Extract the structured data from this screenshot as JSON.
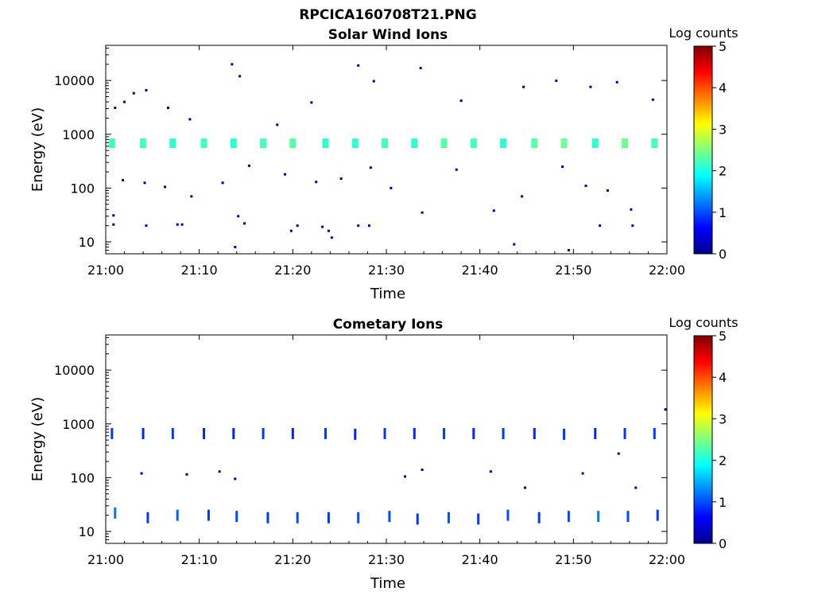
{
  "figure": {
    "title": "RPCICA160708T21.PNG"
  },
  "chart_data": [
    {
      "type": "heatmap",
      "title": "Solar Wind Ions",
      "xlabel": "Time",
      "ylabel": "Energy (eV)",
      "x_ticks": [
        "21:00",
        "21:10",
        "21:20",
        "21:30",
        "21:40",
        "21:50",
        "22:00"
      ],
      "xlim": [
        "21:00",
        "22:00"
      ],
      "y_ticks": [
        "10",
        "100",
        "1000",
        "10000"
      ],
      "y_scale": "log",
      "ylim": [
        6,
        45000
      ],
      "colorbar": {
        "label": "Log counts",
        "range": [
          0,
          5
        ],
        "ticks": [
          "0",
          "1",
          "2",
          "3",
          "4",
          "5"
        ],
        "colormap": "jet"
      },
      "cells": [
        [
          "21:00:40",
          680,
          2.2
        ],
        [
          "21:04:00",
          680,
          2.2
        ],
        [
          "21:07:10",
          680,
          2.1
        ],
        [
          "21:10:30",
          680,
          2.2
        ],
        [
          "21:13:40",
          680,
          2.1
        ],
        [
          "21:16:50",
          680,
          2.2
        ],
        [
          "21:20:00",
          680,
          2.3
        ],
        [
          "21:23:30",
          680,
          2.1
        ],
        [
          "21:26:40",
          680,
          2.1
        ],
        [
          "21:29:50",
          680,
          2.2
        ],
        [
          "21:33:00",
          680,
          2.1
        ],
        [
          "21:36:10",
          680,
          2.3
        ],
        [
          "21:39:20",
          680,
          2.2
        ],
        [
          "21:42:30",
          680,
          2.1
        ],
        [
          "21:45:50",
          680,
          2.3
        ],
        [
          "21:49:00",
          680,
          2.4
        ],
        [
          "21:52:20",
          680,
          2.1
        ],
        [
          "21:55:30",
          680,
          2.4
        ],
        [
          "21:58:40",
          680,
          2.2
        ],
        [
          "21:00:50",
          21,
          0.3
        ],
        [
          "21:00:50",
          31,
          0.3
        ],
        [
          "21:04:20",
          20,
          0.3
        ],
        [
          "21:07:40",
          21,
          0.3
        ],
        [
          "21:08:10",
          21,
          0.3
        ],
        [
          "21:13:50",
          8,
          0.3
        ],
        [
          "21:14:10",
          30,
          0.3
        ],
        [
          "21:14:50",
          22,
          0.3
        ],
        [
          "21:19:50",
          16,
          0.3
        ],
        [
          "21:20:30",
          20,
          0.3
        ],
        [
          "21:23:10",
          19,
          0.3
        ],
        [
          "21:23:50",
          16,
          0.3
        ],
        [
          "21:24:10",
          12,
          0.3
        ],
        [
          "21:27:00",
          20,
          0.3
        ],
        [
          "21:28:10",
          20,
          0.3
        ],
        [
          "21:43:40",
          9,
          0.3
        ],
        [
          "21:49:30",
          7,
          0.3
        ],
        [
          "21:52:50",
          20,
          0.3
        ],
        [
          "21:56:20",
          20,
          0.3
        ],
        [
          "21:01:00",
          3100,
          0.2
        ],
        [
          "21:02:00",
          4000,
          0.2
        ],
        [
          "21:03:00",
          5800,
          0.2
        ],
        [
          "21:04:20",
          6600,
          0.2
        ],
        [
          "21:06:40",
          3100,
          0.2
        ],
        [
          "21:09:00",
          1900,
          0.2
        ],
        [
          "21:13:30",
          20000,
          0.2
        ],
        [
          "21:14:20",
          12000,
          0.2
        ],
        [
          "21:18:20",
          1500,
          0.2
        ],
        [
          "21:22:00",
          3900,
          0.2
        ],
        [
          "21:27:00",
          19000,
          0.2
        ],
        [
          "21:28:40",
          9700,
          0.2
        ],
        [
          "21:33:40",
          17000,
          0.2
        ],
        [
          "21:38:00",
          4200,
          0.2
        ],
        [
          "21:44:40",
          7600,
          0.2
        ],
        [
          "21:48:10",
          9900,
          0.2
        ],
        [
          "21:51:50",
          7600,
          0.2
        ],
        [
          "21:54:40",
          9300,
          0.2
        ],
        [
          "21:58:30",
          4400,
          0.2
        ],
        [
          "21:01:50",
          140,
          0.2
        ],
        [
          "21:04:10",
          125,
          0.2
        ],
        [
          "21:06:20",
          105,
          0.2
        ],
        [
          "21:09:10",
          70,
          0.2
        ],
        [
          "21:12:30",
          125,
          0.2
        ],
        [
          "21:15:20",
          260,
          0.2
        ],
        [
          "21:19:10",
          180,
          0.2
        ],
        [
          "21:22:30",
          130,
          0.2
        ],
        [
          "21:25:10",
          150,
          0.2
        ],
        [
          "21:28:20",
          240,
          0.2
        ],
        [
          "21:30:30",
          100,
          0.2
        ],
        [
          "21:33:50",
          35,
          0.2
        ],
        [
          "21:37:30",
          220,
          0.2
        ],
        [
          "21:41:30",
          38,
          0.2
        ],
        [
          "21:44:30",
          70,
          0.2
        ],
        [
          "21:48:50",
          250,
          0.2
        ],
        [
          "21:51:20",
          110,
          0.2
        ],
        [
          "21:53:40",
          90,
          0.2
        ],
        [
          "21:56:10",
          40,
          0.2
        ]
      ]
    },
    {
      "type": "heatmap",
      "title": "Cometary Ions",
      "xlabel": "Time",
      "ylabel": "Energy (eV)",
      "x_ticks": [
        "21:00",
        "21:10",
        "21:20",
        "21:30",
        "21:40",
        "21:50",
        "22:00"
      ],
      "xlim": [
        "21:00",
        "22:00"
      ],
      "y_ticks": [
        "10",
        "100",
        "1000",
        "10000"
      ],
      "y_scale": "log",
      "ylim": [
        6,
        45000
      ],
      "colorbar": {
        "label": "Log counts",
        "range": [
          0,
          5
        ],
        "ticks": [
          "0",
          "1",
          "2",
          "3",
          "4",
          "5"
        ],
        "colormap": "jet"
      },
      "cells": [
        [
          "21:00:40",
          660,
          0.9
        ],
        [
          "21:04:00",
          660,
          0.8
        ],
        [
          "21:07:10",
          660,
          0.9
        ],
        [
          "21:10:30",
          660,
          0.8
        ],
        [
          "21:13:40",
          660,
          0.8
        ],
        [
          "21:16:50",
          660,
          0.9
        ],
        [
          "21:20:00",
          660,
          0.8
        ],
        [
          "21:23:30",
          660,
          0.9
        ],
        [
          "21:26:40",
          640,
          0.8
        ],
        [
          "21:29:50",
          660,
          0.9
        ],
        [
          "21:33:00",
          660,
          0.8
        ],
        [
          "21:36:10",
          660,
          0.9
        ],
        [
          "21:39:20",
          660,
          0.8
        ],
        [
          "21:42:30",
          660,
          0.9
        ],
        [
          "21:45:50",
          660,
          0.8
        ],
        [
          "21:49:00",
          640,
          0.9
        ],
        [
          "21:52:20",
          660,
          0.8
        ],
        [
          "21:55:30",
          660,
          0.9
        ],
        [
          "21:58:40",
          660,
          0.9
        ],
        [
          "21:01:00",
          22,
          1.2
        ],
        [
          "21:04:30",
          18,
          0.9
        ],
        [
          "21:07:40",
          20,
          1.1
        ],
        [
          "21:11:00",
          20,
          0.9
        ],
        [
          "21:14:00",
          19,
          1.0
        ],
        [
          "21:17:20",
          18,
          0.9
        ],
        [
          "21:20:30",
          18,
          1.0
        ],
        [
          "21:23:50",
          18,
          0.9
        ],
        [
          "21:27:00",
          18,
          1.0
        ],
        [
          "21:30:20",
          19,
          1.0
        ],
        [
          "21:33:20",
          17,
          0.9
        ],
        [
          "21:36:40",
          18,
          1.0
        ],
        [
          "21:39:50",
          17,
          0.9
        ],
        [
          "21:43:00",
          20,
          1.0
        ],
        [
          "21:46:20",
          18,
          0.9
        ],
        [
          "21:49:30",
          19,
          1.0
        ],
        [
          "21:52:40",
          19,
          1.2
        ],
        [
          "21:55:50",
          19,
          1.0
        ],
        [
          "21:59:00",
          20,
          0.9
        ],
        [
          "21:03:50",
          120,
          0.2
        ],
        [
          "21:08:40",
          115,
          0.2
        ],
        [
          "21:12:10",
          130,
          0.2
        ],
        [
          "21:13:50",
          95,
          0.2
        ],
        [
          "21:32:00",
          105,
          0.2
        ],
        [
          "21:33:50",
          140,
          0.2
        ],
        [
          "21:41:10",
          130,
          0.2
        ],
        [
          "21:44:50",
          65,
          0.2
        ],
        [
          "21:51:00",
          120,
          0.2
        ],
        [
          "21:54:50",
          280,
          0.2
        ],
        [
          "21:56:40",
          65,
          0.2
        ],
        [
          "21:59:50",
          1850,
          0.2
        ]
      ]
    }
  ]
}
